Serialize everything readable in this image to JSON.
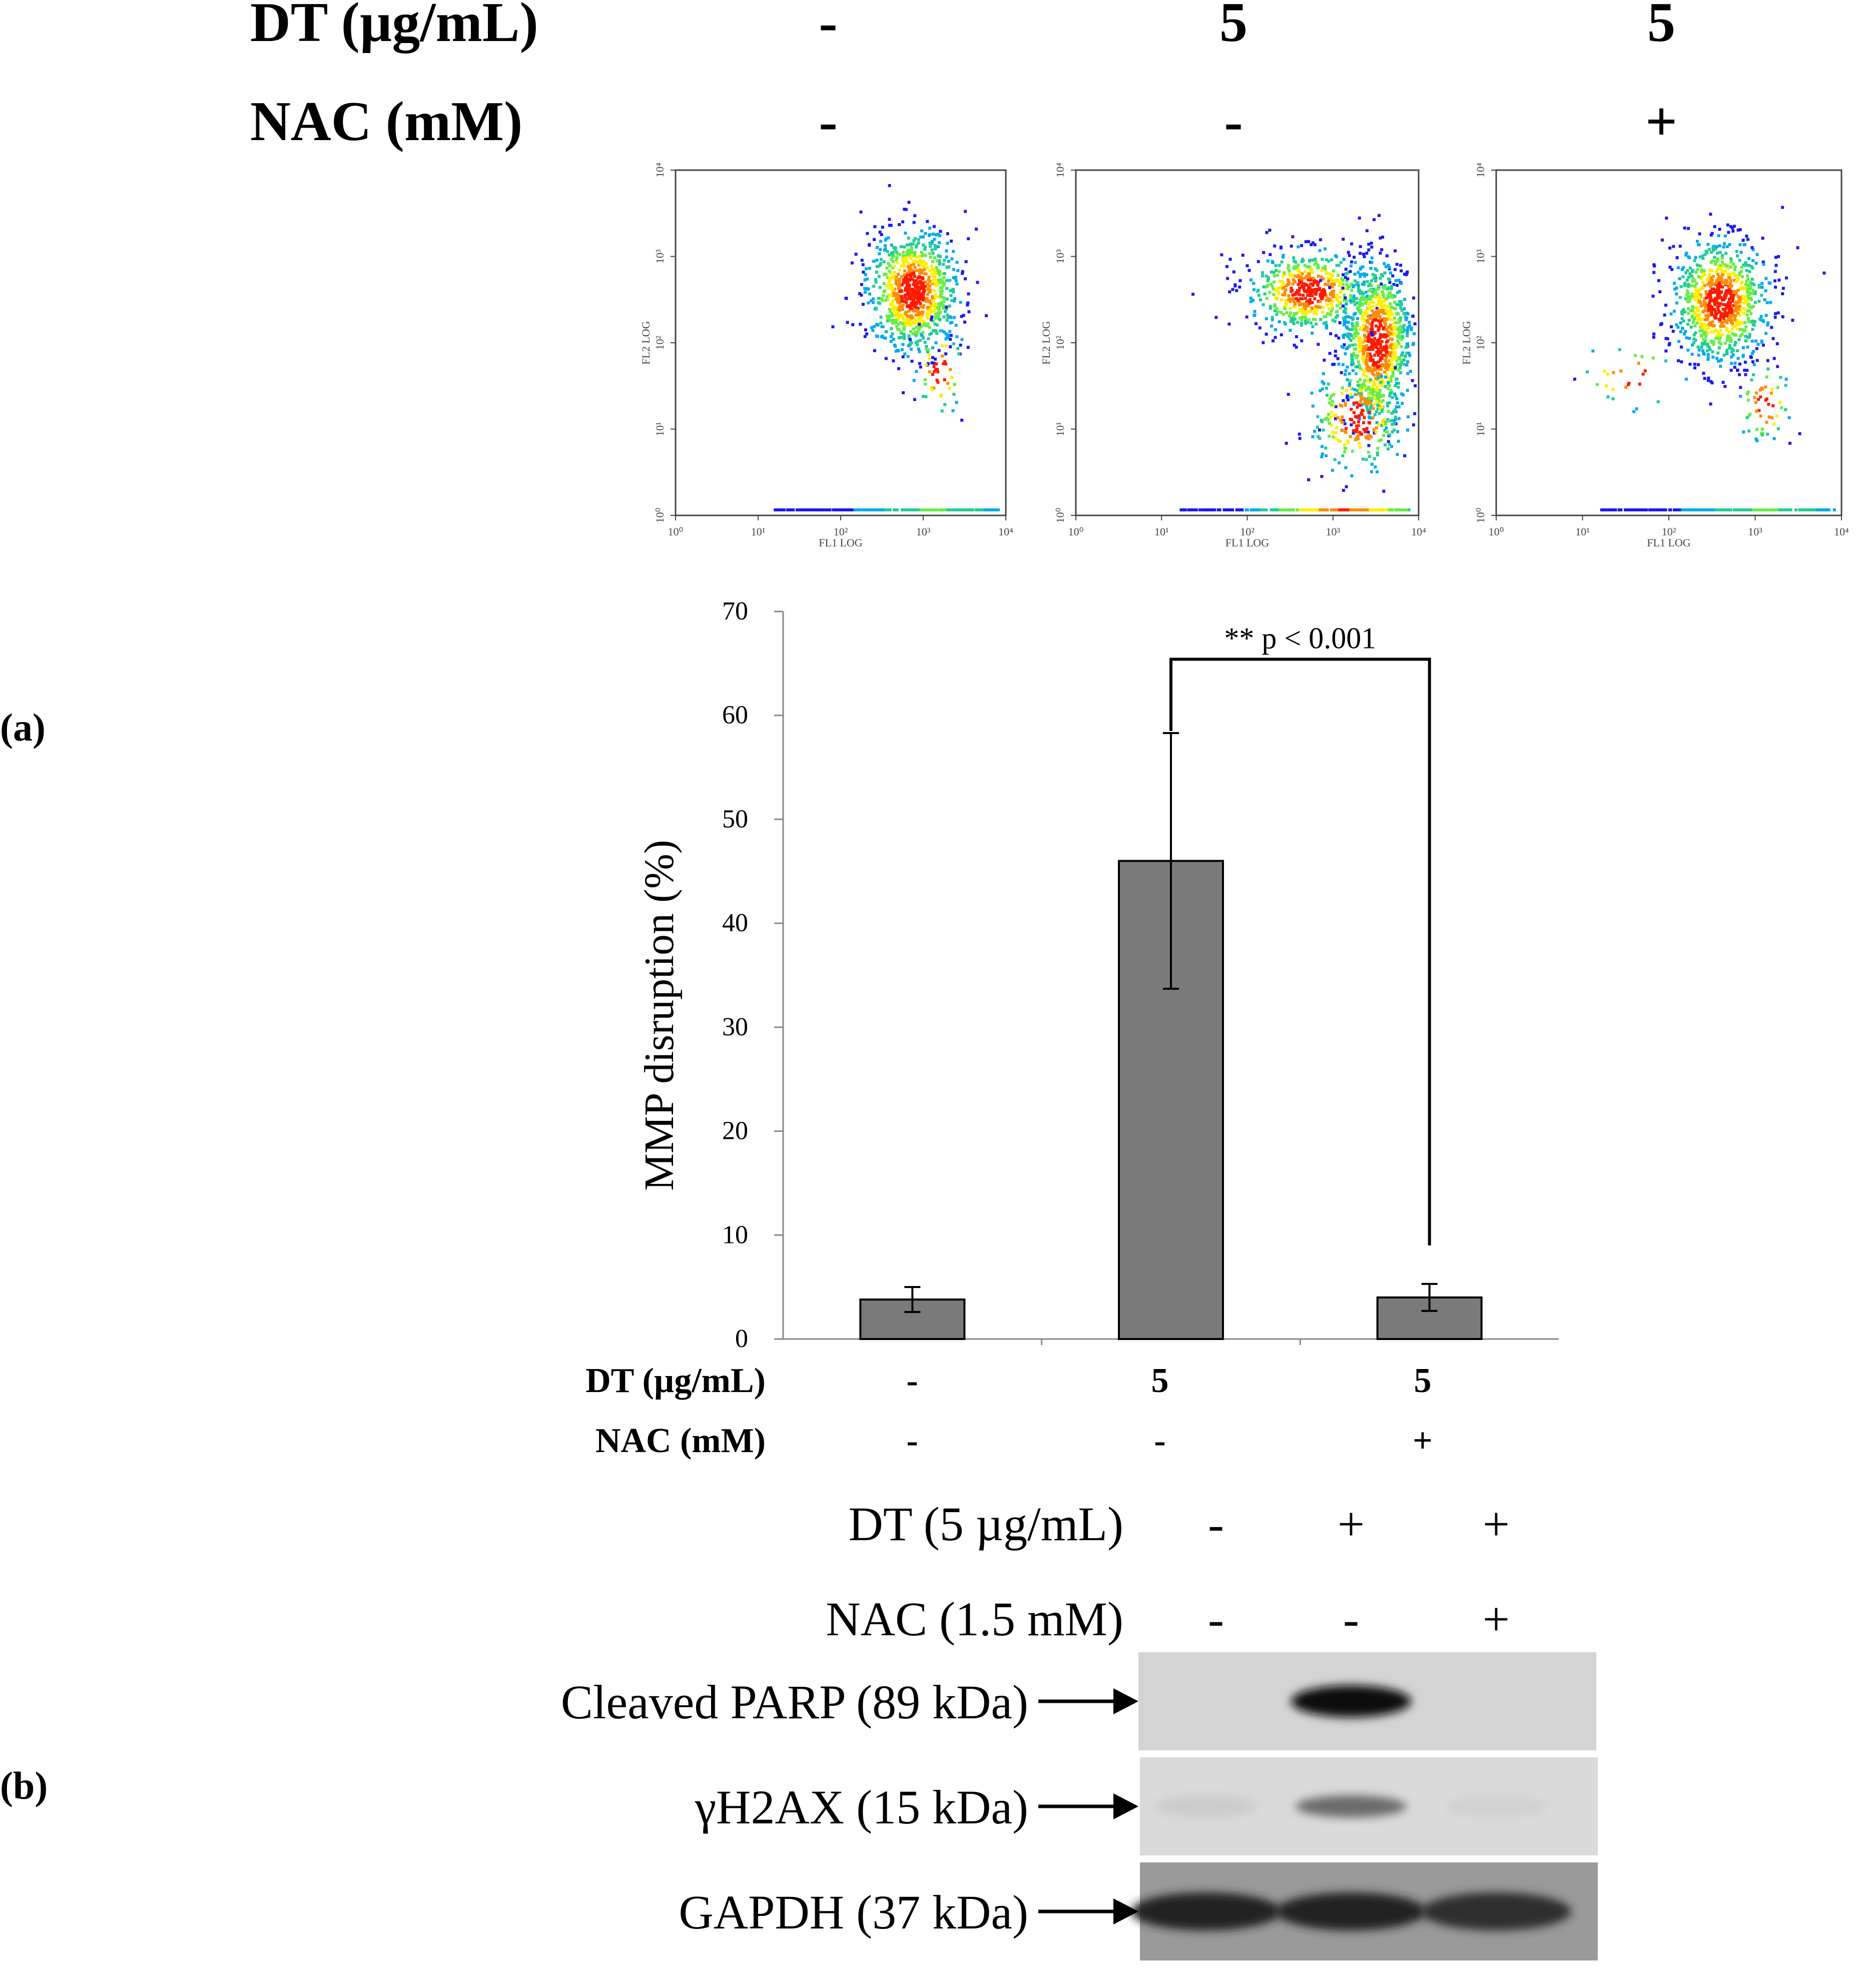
{
  "figure": {
    "panel_a_label": "(a)",
    "panel_b_label": "(b)",
    "flow_header": {
      "rows": [
        {
          "label": "DT (µg/mL)",
          "values": [
            "-",
            "5",
            "5"
          ]
        },
        {
          "label": "NAC  (mM)",
          "values": [
            "-",
            "-",
            "+"
          ]
        }
      ]
    },
    "flow_plots": [
      {
        "condition": "control",
        "xlabel": "FL1 LOG",
        "ylabel": "FL2 LOG",
        "ticks": [
          "10⁰",
          "10¹",
          "10²",
          "10³",
          "10⁴"
        ]
      },
      {
        "condition": "DT 5",
        "xlabel": "FL1 LOG",
        "ylabel": "FL2 LOG",
        "ticks": [
          "10⁰",
          "10¹",
          "10²",
          "10³",
          "10⁴"
        ]
      },
      {
        "condition": "DT 5 + NAC",
        "xlabel": "FL1 LOG",
        "ylabel": "FL2 LOG",
        "ticks": [
          "10⁰",
          "10¹",
          "10²",
          "10³",
          "10⁴"
        ]
      }
    ],
    "bar_footer": {
      "rows": [
        {
          "label": "DT (µg/mL)",
          "values": [
            "-",
            "5",
            "5"
          ]
        },
        {
          "label": "NAC  (mM)",
          "values": [
            "-",
            "-",
            "+"
          ]
        }
      ]
    },
    "western": {
      "header_rows": [
        {
          "label": "DT (5 µg/mL)",
          "values": [
            "-",
            "+",
            "+"
          ]
        },
        {
          "label": "NAC (1.5 mM)",
          "values": [
            "-",
            "-",
            "+"
          ]
        }
      ],
      "blots": [
        {
          "label": "Cleaved PARP (89 kDa)",
          "intensity": [
            0.0,
            1.0,
            0.0
          ]
        },
        {
          "label": "γH2AX (15 kDa)",
          "intensity": [
            0.08,
            0.55,
            0.05
          ]
        },
        {
          "label": "GAPDH (37 kDa)",
          "intensity": [
            0.9,
            0.9,
            0.85
          ]
        }
      ]
    }
  },
  "chart_data": {
    "type": "bar",
    "categories": [
      "DT -, NAC -",
      "DT 5, NAC -",
      "DT 5, NAC +"
    ],
    "values": [
      3.8,
      46,
      4
    ],
    "errors": [
      1.2,
      12.3,
      1.3
    ],
    "ylabel": "MMP disruption (%)",
    "xlabel": "",
    "ylim": [
      0,
      70
    ],
    "yticks": [
      0,
      10,
      20,
      30,
      40,
      50,
      60,
      70
    ],
    "annotation": {
      "text": "** p < 0.001",
      "from": 1,
      "to": 2
    },
    "colors": {
      "bar": "#7a7a7a",
      "bar_edge": "#000000"
    }
  }
}
